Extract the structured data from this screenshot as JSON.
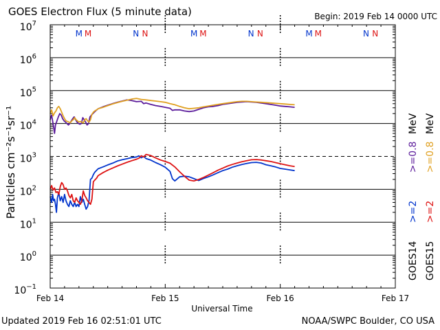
{
  "header": {
    "title": "GOES Electron Flux (5 minute data)",
    "begin": "Begin: 2019 Feb 14 0000 UTC"
  },
  "footer": {
    "updated": "Updated 2019 Feb 16 02:51:01 UTC",
    "credit": "NOAA/SWPC Boulder, CO USA"
  },
  "colors": {
    "goes14_2mev": "#0033cc",
    "goes15_2mev": "#dd1111",
    "goes14_08mev": "#5a1a9a",
    "goes15_08mev": "#e0a020",
    "M": "#0033cc",
    "N": "#dd1111"
  },
  "chart_data": {
    "type": "line",
    "title": "GOES Electron Flux (5 minute data)",
    "xlabel": "Universal Time",
    "ylabel": "Particles cm⁻²s⁻¹sr⁻¹",
    "xlim": [
      0,
      72
    ],
    "ylim_log10": [
      -1,
      7
    ],
    "x_unit": "hours since 2019 Feb 14 0000 UTC",
    "x_ticks": [
      {
        "x": 0,
        "label": "Feb 14"
      },
      {
        "x": 24,
        "label": "Feb 15"
      },
      {
        "x": 48,
        "label": "Feb 16"
      },
      {
        "x": 72,
        "label": "Feb 17"
      }
    ],
    "y_ticks": [
      {
        "exp": 7,
        "base": "10",
        "sup": "7"
      },
      {
        "exp": 6,
        "base": "10",
        "sup": "6"
      },
      {
        "exp": 5,
        "base": "10",
        "sup": "5"
      },
      {
        "exp": 4,
        "base": "10",
        "sup": "4"
      },
      {
        "exp": 3,
        "base": "10",
        "sup": "3"
      },
      {
        "exp": 2,
        "base": "10",
        "sup": "2"
      },
      {
        "exp": 1,
        "base": "10",
        "sup": "1"
      },
      {
        "exp": 0,
        "base": "10",
        "sup": "0"
      },
      {
        "exp": -1,
        "base": "10",
        "sup": "−1"
      }
    ],
    "threshold": {
      "value": 1000
    },
    "markers": [
      {
        "x": 6.0,
        "label": "M",
        "color_key": "M"
      },
      {
        "x": 7.9,
        "label": "M",
        "color_key": "N"
      },
      {
        "x": 17.9,
        "label": "N",
        "color_key": "M"
      },
      {
        "x": 19.8,
        "label": "N",
        "color_key": "N"
      },
      {
        "x": 30.0,
        "label": "M",
        "color_key": "M"
      },
      {
        "x": 31.9,
        "label": "M",
        "color_key": "N"
      },
      {
        "x": 41.9,
        "label": "N",
        "color_key": "M"
      },
      {
        "x": 43.8,
        "label": "N",
        "color_key": "N"
      },
      {
        "x": 54.0,
        "label": "M",
        "color_key": "M"
      },
      {
        "x": 55.9,
        "label": "M",
        "color_key": "N"
      },
      {
        "x": 65.9,
        "label": "N",
        "color_key": "M"
      },
      {
        "x": 67.8,
        "label": "N",
        "color_key": "N"
      }
    ],
    "legend": {
      "placement": "right",
      "row1": {
        "sat": "GOES14",
        "e2": ">=2",
        "e08": ">=0.8",
        "unit": "MeV"
      },
      "row2": {
        "sat": "GOES15",
        "e2": ">=2",
        "e08": ">=0.8",
        "unit": "MeV"
      }
    },
    "series": [
      {
        "name": "GOES14 >=2 MeV",
        "color_key": "goes14_2mev",
        "x": [
          0.0,
          0.3,
          0.5,
          0.7,
          0.9,
          1.1,
          1.3,
          1.5,
          1.8,
          2.1,
          2.4,
          2.7,
          3.0,
          3.3,
          3.6,
          3.9,
          4.2,
          4.5,
          4.8,
          5.1,
          5.4,
          5.7,
          6.0,
          6.3,
          6.6,
          6.9,
          7.2,
          7.5,
          7.8,
          8.1,
          8.4,
          8.7,
          9.0,
          9.3,
          9.7,
          10.0,
          11.0,
          12.0,
          13.0,
          14.0,
          15.0,
          16.0,
          17.0,
          18.0,
          18.5,
          19.0,
          19.5,
          20.0,
          21.0,
          22.0,
          23.0,
          24.0,
          25.0,
          25.5,
          26.0,
          27.0,
          28.0,
          29.0,
          30.0,
          31.0,
          32.0,
          33.0,
          34.0,
          35.0,
          36.0,
          37.0,
          38.0,
          39.0,
          40.0,
          41.0,
          42.0,
          43.0,
          44.0,
          45.0,
          46.0,
          47.0,
          48.0,
          49.0,
          50.0,
          51.0
        ],
        "y": [
          60,
          40,
          70,
          45,
          50,
          35,
          20,
          55,
          80,
          45,
          60,
          40,
          70,
          45,
          35,
          30,
          45,
          35,
          30,
          40,
          30,
          35,
          30,
          60,
          40,
          50,
          35,
          25,
          30,
          45,
          200,
          220,
          280,
          330,
          380,
          420,
          480,
          550,
          620,
          720,
          790,
          850,
          920,
          960,
          1040,
          910,
          1000,
          860,
          770,
          650,
          560,
          470,
          350,
          210,
          180,
          240,
          250,
          240,
          210,
          185,
          215,
          240,
          275,
          320,
          370,
          410,
          470,
          520,
          570,
          610,
          650,
          660,
          630,
          560,
          520,
          480,
          430,
          410,
          390,
          370
        ]
      },
      {
        "name": "GOES15 >=2 MeV",
        "color_key": "goes15_2mev",
        "x": [
          0.0,
          0.3,
          0.6,
          0.9,
          1.2,
          1.5,
          1.8,
          2.1,
          2.4,
          2.7,
          3.0,
          3.3,
          3.6,
          3.9,
          4.2,
          4.5,
          4.8,
          5.1,
          5.4,
          5.7,
          6.0,
          6.3,
          6.6,
          6.9,
          7.2,
          7.5,
          7.8,
          8.1,
          8.4,
          8.7,
          9.0,
          9.3,
          9.7,
          10.0,
          11.0,
          12.0,
          13.0,
          14.0,
          15.0,
          16.0,
          17.0,
          18.0,
          18.5,
          19.0,
          19.5,
          20.0,
          21.0,
          22.0,
          23.0,
          24.0,
          25.0,
          26.0,
          27.0,
          28.0,
          29.0,
          30.0,
          31.0,
          32.0,
          33.0,
          34.0,
          35.0,
          36.0,
          37.0,
          38.0,
          39.0,
          40.0,
          41.0,
          42.0,
          43.0,
          44.0,
          45.0,
          46.0,
          47.0,
          48.0,
          49.0,
          50.0,
          51.0
        ],
        "y": [
          100,
          130,
          95,
          110,
          80,
          85,
          70,
          120,
          160,
          140,
          100,
          110,
          90,
          65,
          55,
          70,
          45,
          40,
          55,
          45,
          40,
          35,
          45,
          90,
          65,
          55,
          45,
          40,
          35,
          50,
          170,
          190,
          220,
          260,
          320,
          380,
          440,
          510,
          580,
          660,
          740,
          820,
          880,
          1050,
          960,
          1150,
          1060,
          900,
          780,
          700,
          620,
          480,
          340,
          250,
          190,
          180,
          200,
          230,
          270,
          320,
          380,
          440,
          510,
          570,
          630,
          690,
          740,
          790,
          800,
          780,
          740,
          700,
          650,
          600,
          560,
          520,
          490
        ]
      },
      {
        "name": "GOES14 >=0.8 MeV",
        "color_key": "goes14_08mev",
        "x": [
          0.0,
          0.3,
          0.5,
          0.7,
          0.9,
          1.1,
          1.4,
          1.7,
          2.0,
          2.3,
          2.6,
          2.9,
          3.2,
          3.5,
          3.8,
          4.1,
          4.4,
          4.7,
          5.0,
          5.3,
          5.6,
          5.9,
          6.2,
          6.5,
          6.8,
          7.1,
          7.4,
          7.7,
          8.0,
          8.3,
          8.6,
          8.9,
          9.2,
          9.6,
          10.0,
          11.0,
          12.0,
          13.0,
          14.0,
          15.0,
          16.0,
          17.0,
          18.0,
          19.0,
          19.5,
          20.0,
          21.0,
          22.0,
          23.0,
          24.0,
          25.0,
          25.5,
          26.0,
          27.0,
          28.0,
          29.0,
          30.0,
          31.0,
          32.0,
          33.0,
          34.0,
          35.0,
          36.0,
          37.0,
          38.0,
          39.0,
          40.0,
          41.0,
          42.0,
          43.0,
          44.0,
          45.0,
          46.0,
          47.0,
          48.0,
          49.0,
          50.0,
          51.0
        ],
        "y": [
          13000,
          18000,
          12000,
          8000,
          5000,
          9000,
          12000,
          16000,
          20000,
          18000,
          14000,
          12000,
          11000,
          10000,
          9000,
          10000,
          12000,
          14000,
          16000,
          13000,
          11000,
          10000,
          9500,
          10000,
          15000,
          13000,
          11000,
          9000,
          10000,
          16000,
          18000,
          20000,
          22000,
          25000,
          28000,
          32000,
          36000,
          40000,
          44000,
          48000,
          52000,
          50000,
          46000,
          47000,
          40000,
          42000,
          38000,
          35000,
          33000,
          31000,
          29000,
          25000,
          26000,
          26000,
          24000,
          23000,
          24000,
          27000,
          30000,
          32000,
          33000,
          35000,
          38000,
          40000,
          42000,
          44000,
          45000,
          46000,
          45000,
          44000,
          42000,
          40000,
          38000,
          36000,
          34000,
          33000,
          32000,
          31000
        ]
      },
      {
        "name": "GOES15 >=0.8 MeV",
        "color_key": "goes15_08mev",
        "x": [
          0.0,
          0.3,
          0.6,
          0.9,
          1.2,
          1.5,
          1.8,
          2.1,
          2.4,
          2.7,
          3.0,
          3.3,
          3.6,
          3.9,
          4.2,
          4.5,
          4.8,
          5.1,
          5.4,
          5.7,
          6.0,
          6.3,
          6.6,
          6.9,
          7.2,
          7.5,
          7.8,
          8.1,
          8.4,
          8.7,
          9.0,
          9.3,
          9.7,
          10.0,
          11.0,
          12.0,
          13.0,
          14.0,
          15.0,
          16.0,
          17.0,
          18.0,
          19.0,
          20.0,
          21.0,
          22.0,
          23.0,
          24.0,
          25.0,
          26.0,
          27.0,
          28.0,
          29.0,
          30.0,
          31.0,
          32.0,
          33.0,
          34.0,
          35.0,
          36.0,
          37.0,
          38.0,
          39.0,
          40.0,
          41.0,
          42.0,
          43.0,
          44.0,
          45.0,
          46.0,
          47.0,
          48.0,
          49.0,
          50.0,
          51.0
        ],
        "y": [
          20000,
          26000,
          17000,
          21000,
          24000,
          30000,
          33000,
          28000,
          22000,
          17000,
          14000,
          12000,
          11500,
          11000,
          10500,
          12000,
          13000,
          15000,
          13000,
          12000,
          11000,
          11500,
          11000,
          10500,
          13000,
          14000,
          12000,
          11000,
          13000,
          19000,
          22000,
          24000,
          26000,
          28000,
          31000,
          35000,
          39000,
          43000,
          47000,
          51000,
          55000,
          58000,
          54000,
          52000,
          50000,
          48000,
          46000,
          44000,
          40000,
          37000,
          33000,
          30000,
          28000,
          29000,
          30000,
          32000,
          34000,
          36000,
          38000,
          40000,
          42000,
          44000,
          46000,
          47000,
          47000,
          46000,
          45000,
          44000,
          43000,
          42000,
          41000,
          40000,
          39000,
          38000,
          37000
        ]
      }
    ]
  }
}
